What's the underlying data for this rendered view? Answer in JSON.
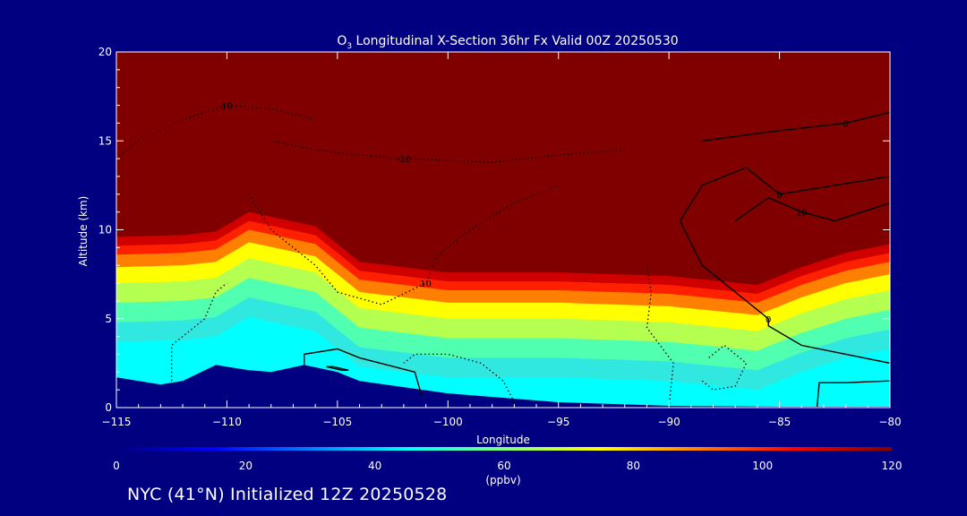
{
  "chart_data": {
    "type": "heatmap",
    "title": {
      "species_main": "O",
      "species_sub": "3",
      "rest": " Longitudinal X-Section 36hr  Fx Valid 00Z 20250530"
    },
    "xlabel": "Longitude",
    "ylabel": "Altitude (km)",
    "xlim": [
      -115,
      -80
    ],
    "ylim": [
      0,
      20
    ],
    "x_ticks": [
      -115,
      -110,
      -105,
      -100,
      -95,
      -90,
      -85,
      -80
    ],
    "x_tick_labels": [
      "−115",
      "−110",
      "−105",
      "−100",
      "−95",
      "−90",
      "−85",
      "−80"
    ],
    "y_ticks": [
      0,
      5,
      10,
      15,
      20
    ],
    "y_tick_labels": [
      "0",
      "5",
      "10",
      "15",
      "20"
    ],
    "colorbar": {
      "min": 0,
      "max": 120,
      "ticks": [
        0,
        20,
        40,
        60,
        80,
        100,
        120
      ],
      "tick_labels": [
        "0",
        "20",
        "40",
        "60",
        "80",
        "100",
        "120"
      ],
      "unit": "(ppbv)",
      "colors": [
        "#000080",
        "#0000ff",
        "#0080ff",
        "#00ffff",
        "#80ff80",
        "#ffff00",
        "#ff8000",
        "#ff0000",
        "#800000"
      ]
    },
    "ozone_level_bands": [
      {
        "level": 120,
        "color": "#800000"
      },
      {
        "level": 110,
        "color": "#d00000"
      },
      {
        "level": 100,
        "color": "#ff2000"
      },
      {
        "level": 90,
        "color": "#ff8000"
      },
      {
        "level": 80,
        "color": "#ffff00"
      },
      {
        "level": 65,
        "color": "#b4ff50"
      },
      {
        "level": 55,
        "color": "#50ffb0"
      },
      {
        "level": 45,
        "color": "#30e8e0"
      },
      {
        "level": 38,
        "color": "#00ffff"
      }
    ],
    "tropopause_altitude_km": [
      {
        "lon": -115,
        "alt": 10.2
      },
      {
        "lon": -112,
        "alt": 10.3
      },
      {
        "lon": -110.5,
        "alt": 10.5
      },
      {
        "lon": -109,
        "alt": 11.6
      },
      {
        "lon": -106,
        "alt": 10.8
      },
      {
        "lon": -104,
        "alt": 8.8
      },
      {
        "lon": -100,
        "alt": 8.2
      },
      {
        "lon": -95,
        "alt": 8.2
      },
      {
        "lon": -90,
        "alt": 8.0
      },
      {
        "lon": -86,
        "alt": 7.5
      },
      {
        "lon": -84,
        "alt": 8.5
      },
      {
        "lon": -82,
        "alt": 9.3
      },
      {
        "lon": -80,
        "alt": 9.8
      }
    ],
    "terrain_km": [
      {
        "lon": -115,
        "alt": 1.7
      },
      {
        "lon": -113,
        "alt": 1.3
      },
      {
        "lon": -112,
        "alt": 1.5
      },
      {
        "lon": -110.5,
        "alt": 2.4
      },
      {
        "lon": -109,
        "alt": 2.1
      },
      {
        "lon": -108,
        "alt": 2.0
      },
      {
        "lon": -106.5,
        "alt": 2.4
      },
      {
        "lon": -105,
        "alt": 2.0
      },
      {
        "lon": -104,
        "alt": 1.5
      },
      {
        "lon": -100,
        "alt": 0.8
      },
      {
        "lon": -95,
        "alt": 0.3
      },
      {
        "lon": -90,
        "alt": 0.1
      },
      {
        "lon": -85,
        "alt": 0.05
      },
      {
        "lon": -80,
        "alt": 0.05
      }
    ],
    "contours": {
      "solid": [
        {
          "label": "0",
          "points": [
            [
              -88.5,
              15.0
            ],
            [
              -85.5,
              15.5
            ],
            [
              -82,
              16.0
            ],
            [
              -80,
              16.6
            ]
          ]
        },
        {
          "label": "0",
          "points": [
            [
              -89.5,
              10.5
            ],
            [
              -88.5,
              12.5
            ],
            [
              -86.5,
              13.5
            ],
            [
              -85,
              12.0
            ],
            [
              -83,
              12.4
            ],
            [
              -80,
              13.0
            ]
          ]
        },
        {
          "label": "0",
          "points": [
            [
              -89.5,
              10.5
            ],
            [
              -88.5,
              8.0
            ],
            [
              -87.5,
              7.0
            ],
            [
              -85.5,
              5.0
            ],
            [
              -85.5,
              4.6
            ],
            [
              -84,
              3.5
            ],
            [
              -80,
              2.5
            ]
          ]
        },
        {
          "label": "10",
          "points": [
            [
              -87,
              10.5
            ],
            [
              -85.5,
              11.8
            ],
            [
              -84,
              11.0
            ],
            [
              -82.5,
              10.5
            ],
            [
              -80,
              11.5
            ]
          ]
        },
        {
          "label": "",
          "points": [
            [
              -83.3,
              0.0
            ],
            [
              -83.2,
              1.4
            ],
            [
              -82,
              1.4
            ],
            [
              -80,
              1.5
            ]
          ]
        },
        {
          "label": "",
          "points": [
            [
              -106.5,
              2.4
            ],
            [
              -106.5,
              3.0
            ],
            [
              -105,
              3.3
            ],
            [
              -104,
              2.8
            ],
            [
              -101.5,
              2.0
            ],
            [
              -101.2,
              0.7
            ]
          ]
        },
        {
          "label": "",
          "points": [
            [
              -105.5,
              2.3
            ],
            [
              -104.8,
              2.1
            ],
            [
              -104.5,
              2.1
            ],
            [
              -105.2,
              2.3
            ],
            [
              -105.5,
              2.3
            ]
          ]
        }
      ],
      "dotted": [
        {
          "label": "10",
          "points": [
            [
              -115,
              14.0
            ],
            [
              -114,
              15.0
            ],
            [
              -112,
              16.2
            ],
            [
              -110,
              17.0
            ],
            [
              -108,
              16.8
            ],
            [
              -106,
              16.2
            ]
          ]
        },
        {
          "label": "-10",
          "points": [
            [
              -108,
              15.0
            ],
            [
              -106,
              14.5
            ],
            [
              -104,
              14.2
            ],
            [
              -102,
              14.0
            ],
            [
              -98,
              13.8
            ],
            [
              -95,
              14.2
            ],
            [
              -92,
              14.5
            ]
          ]
        },
        {
          "label": "10",
          "points": [
            [
              -109,
              12.0
            ],
            [
              -108,
              10.0
            ],
            [
              -106,
              8.0
            ],
            [
              -105,
              6.5
            ],
            [
              -103,
              5.8
            ],
            [
              -101,
              7.0
            ],
            [
              -100.5,
              8.5
            ],
            [
              -99,
              10.0
            ],
            [
              -97,
              11.5
            ],
            [
              -95,
              12.5
            ]
          ]
        },
        {
          "label": "",
          "points": [
            [
              -112.5,
              1.5
            ],
            [
              -112.5,
              3.5
            ],
            [
              -111,
              5.0
            ],
            [
              -110.5,
              6.5
            ],
            [
              -110,
              7.0
            ]
          ]
        },
        {
          "label": "",
          "points": [
            [
              -90,
              0.0
            ],
            [
              -89.8,
              2.5
            ],
            [
              -91,
              4.5
            ],
            [
              -90.8,
              6.5
            ],
            [
              -91,
              8.0
            ]
          ]
        },
        {
          "label": "",
          "points": [
            [
              -97,
              0.3
            ],
            [
              -97.5,
              1.5
            ],
            [
              -98.5,
              2.5
            ],
            [
              -100,
              3.0
            ],
            [
              -101.5,
              3.0
            ],
            [
              -102,
              2.5
            ]
          ]
        },
        {
          "label": "",
          "points": [
            [
              -88.5,
              1.5
            ],
            [
              -88,
              1.0
            ],
            [
              -87,
              1.2
            ],
            [
              -86.5,
              2.5
            ],
            [
              -87.5,
              3.5
            ],
            [
              -88.2,
              2.8
            ]
          ]
        }
      ]
    }
  },
  "footer": {
    "caption": "NYC (41°N) Initialized 12Z 20250528"
  }
}
